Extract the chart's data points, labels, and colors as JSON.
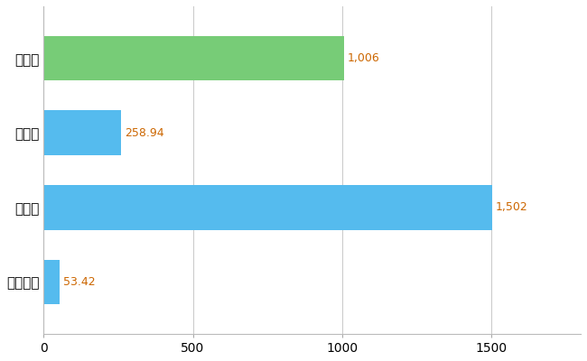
{
  "categories": [
    "大田区",
    "県平均",
    "県最大",
    "全国平均"
  ],
  "values": [
    1006,
    258.94,
    1502,
    53.42
  ],
  "bar_colors": [
    "#77cc77",
    "#55bbee",
    "#55bbee",
    "#55bbee"
  ],
  "value_labels": [
    "1,006",
    "258.94",
    "1,502",
    "53.42"
  ],
  "xlim": [
    0,
    1800
  ],
  "xticks": [
    0,
    500,
    1000,
    1500
  ],
  "background_color": "#ffffff",
  "grid_color": "#cccccc",
  "label_color": "#cc6600",
  "bar_height": 0.6,
  "figsize": [
    6.5,
    4.0
  ],
  "dpi": 100,
  "font_size_yticks": 11,
  "font_size_xticks": 10,
  "font_size_labels": 9
}
